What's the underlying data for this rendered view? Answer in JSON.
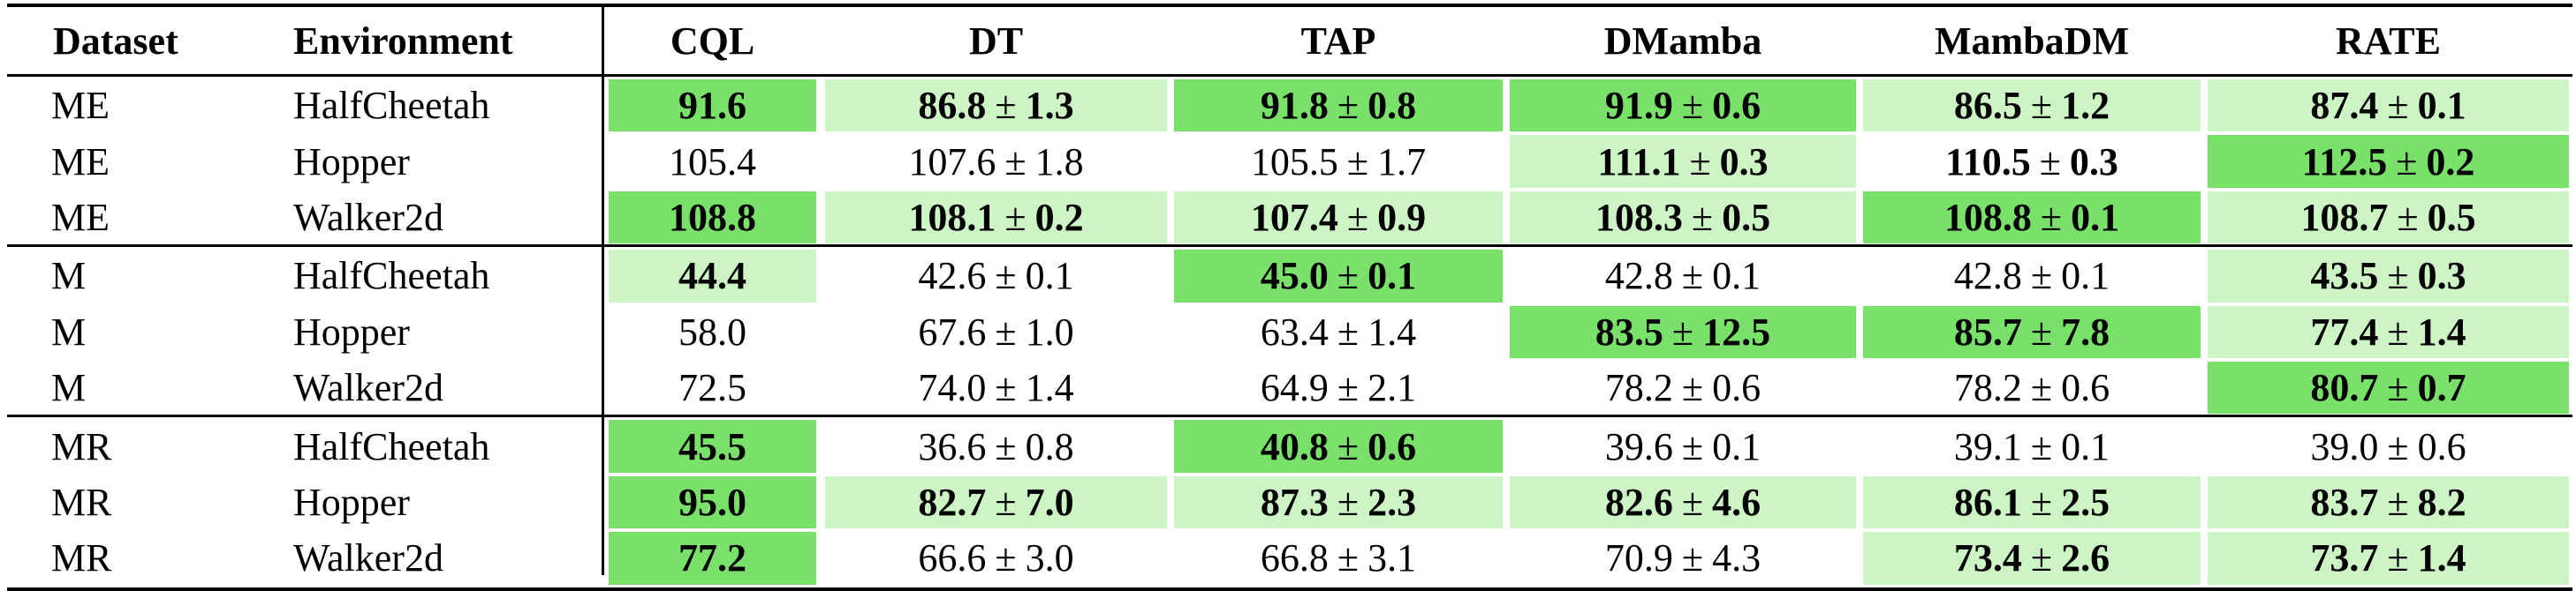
{
  "colors": {
    "strong": "#79e06a",
    "light": "#cdf4c4",
    "none": "#ffffff"
  },
  "headers": [
    "Dataset",
    "Environment",
    "CQL",
    "DT",
    "TAP",
    "DMamba",
    "MambaDM",
    "RATE"
  ],
  "rows": [
    {
      "dataset": "ME",
      "env": "HalfCheetah",
      "cells": [
        {
          "val": "91.6",
          "std": "",
          "bold": true,
          "shade": "strong"
        },
        {
          "val": "86.8",
          "std": "1.3",
          "bold": true,
          "shade": "light"
        },
        {
          "val": "91.8",
          "std": "0.8",
          "bold": true,
          "shade": "strong"
        },
        {
          "val": "91.9",
          "std": "0.6",
          "bold": true,
          "shade": "strong"
        },
        {
          "val": "86.5",
          "std": "1.2",
          "bold": true,
          "shade": "light"
        },
        {
          "val": "87.4",
          "std": "0.1",
          "bold": true,
          "shade": "light"
        }
      ]
    },
    {
      "dataset": "ME",
      "env": "Hopper",
      "cells": [
        {
          "val": "105.4",
          "std": "",
          "bold": false,
          "shade": "none"
        },
        {
          "val": "107.6",
          "std": "1.8",
          "bold": false,
          "shade": "none"
        },
        {
          "val": "105.5",
          "std": "1.7",
          "bold": false,
          "shade": "none"
        },
        {
          "val": "111.1",
          "std": "0.3",
          "bold": true,
          "shade": "light"
        },
        {
          "val": "110.5",
          "std": "0.3",
          "bold": true,
          "shade": "none"
        },
        {
          "val": "112.5",
          "std": "0.2",
          "bold": true,
          "shade": "strong"
        }
      ]
    },
    {
      "dataset": "ME",
      "env": "Walker2d",
      "cells": [
        {
          "val": "108.8",
          "std": "",
          "bold": true,
          "shade": "strong"
        },
        {
          "val": "108.1",
          "std": "0.2",
          "bold": true,
          "shade": "light"
        },
        {
          "val": "107.4",
          "std": "0.9",
          "bold": true,
          "shade": "light"
        },
        {
          "val": "108.3",
          "std": "0.5",
          "bold": true,
          "shade": "light"
        },
        {
          "val": "108.8",
          "std": "0.1",
          "bold": true,
          "shade": "strong"
        },
        {
          "val": "108.7",
          "std": "0.5",
          "bold": true,
          "shade": "light"
        }
      ]
    },
    {
      "dataset": "M",
      "env": "HalfCheetah",
      "cells": [
        {
          "val": "44.4",
          "std": "",
          "bold": true,
          "shade": "light"
        },
        {
          "val": "42.6",
          "std": "0.1",
          "bold": false,
          "shade": "none"
        },
        {
          "val": "45.0",
          "std": "0.1",
          "bold": true,
          "shade": "strong"
        },
        {
          "val": "42.8",
          "std": "0.1",
          "bold": false,
          "shade": "none"
        },
        {
          "val": "42.8",
          "std": "0.1",
          "bold": false,
          "shade": "none"
        },
        {
          "val": "43.5",
          "std": "0.3",
          "bold": true,
          "shade": "light"
        }
      ]
    },
    {
      "dataset": "M",
      "env": "Hopper",
      "cells": [
        {
          "val": "58.0",
          "std": "",
          "bold": false,
          "shade": "none"
        },
        {
          "val": "67.6",
          "std": "1.0",
          "bold": false,
          "shade": "none"
        },
        {
          "val": "63.4",
          "std": "1.4",
          "bold": false,
          "shade": "none"
        },
        {
          "val": "83.5",
          "std": "12.5",
          "bold": true,
          "shade": "strong"
        },
        {
          "val": "85.7",
          "std": "7.8",
          "bold": true,
          "shade": "strong"
        },
        {
          "val": "77.4",
          "std": "1.4",
          "bold": true,
          "shade": "light"
        }
      ]
    },
    {
      "dataset": "M",
      "env": "Walker2d",
      "cells": [
        {
          "val": "72.5",
          "std": "",
          "bold": false,
          "shade": "none"
        },
        {
          "val": "74.0",
          "std": "1.4",
          "bold": false,
          "shade": "none"
        },
        {
          "val": "64.9",
          "std": "2.1",
          "bold": false,
          "shade": "none"
        },
        {
          "val": "78.2",
          "std": "0.6",
          "bold": false,
          "shade": "none"
        },
        {
          "val": "78.2",
          "std": "0.6",
          "bold": false,
          "shade": "none"
        },
        {
          "val": "80.7",
          "std": "0.7",
          "bold": true,
          "shade": "strong"
        }
      ]
    },
    {
      "dataset": "MR",
      "env": "HalfCheetah",
      "cells": [
        {
          "val": "45.5",
          "std": "",
          "bold": true,
          "shade": "strong"
        },
        {
          "val": "36.6",
          "std": "0.8",
          "bold": false,
          "shade": "none"
        },
        {
          "val": "40.8",
          "std": "0.6",
          "bold": true,
          "shade": "strong"
        },
        {
          "val": "39.6",
          "std": "0.1",
          "bold": false,
          "shade": "none"
        },
        {
          "val": "39.1",
          "std": "0.1",
          "bold": false,
          "shade": "none"
        },
        {
          "val": "39.0",
          "std": "0.6",
          "bold": false,
          "shade": "none"
        }
      ]
    },
    {
      "dataset": "MR",
      "env": "Hopper",
      "cells": [
        {
          "val": "95.0",
          "std": "",
          "bold": true,
          "shade": "strong"
        },
        {
          "val": "82.7",
          "std": "7.0",
          "bold": true,
          "shade": "light"
        },
        {
          "val": "87.3",
          "std": "2.3",
          "bold": true,
          "shade": "light"
        },
        {
          "val": "82.6",
          "std": "4.6",
          "bold": true,
          "shade": "light"
        },
        {
          "val": "86.1",
          "std": "2.5",
          "bold": true,
          "shade": "light"
        },
        {
          "val": "83.7",
          "std": "8.2",
          "bold": true,
          "shade": "light"
        }
      ]
    },
    {
      "dataset": "MR",
      "env": "Walker2d",
      "cells": [
        {
          "val": "77.2",
          "std": "",
          "bold": true,
          "shade": "strong"
        },
        {
          "val": "66.6",
          "std": "3.0",
          "bold": false,
          "shade": "none"
        },
        {
          "val": "66.8",
          "std": "3.1",
          "bold": false,
          "shade": "none"
        },
        {
          "val": "70.9",
          "std": "4.3",
          "bold": false,
          "shade": "none"
        },
        {
          "val": "73.4",
          "std": "2.6",
          "bold": true,
          "shade": "light"
        },
        {
          "val": "73.7",
          "std": "1.4",
          "bold": true,
          "shade": "light"
        }
      ]
    }
  ]
}
